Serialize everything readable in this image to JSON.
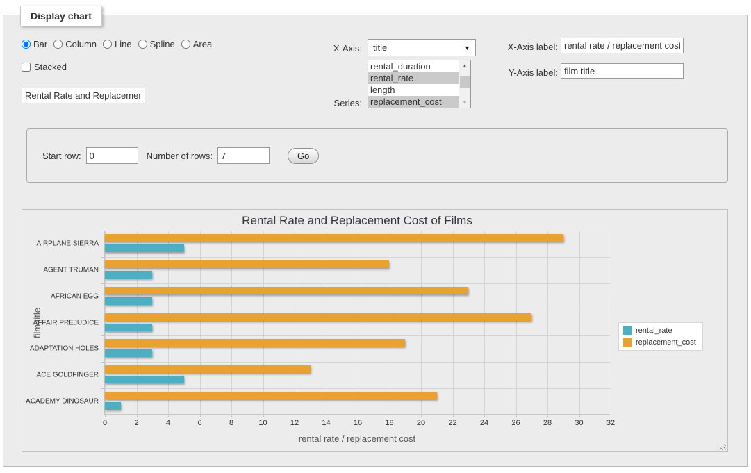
{
  "panel": {
    "legend": "Display chart"
  },
  "controls": {
    "chart_types": [
      {
        "label": "Bar",
        "checked": true
      },
      {
        "label": "Column",
        "checked": false
      },
      {
        "label": "Line",
        "checked": false
      },
      {
        "label": "Spline",
        "checked": false
      },
      {
        "label": "Area",
        "checked": false
      }
    ],
    "stacked": {
      "label": "Stacked",
      "checked": false
    },
    "chart_title_input": {
      "value": "Rental Rate and Replacemer"
    },
    "x_axis": {
      "label": "X-Axis:",
      "selected": "title"
    },
    "series": {
      "label": "Series:",
      "options": [
        {
          "label": "rental_duration",
          "selected": false
        },
        {
          "label": "rental_rate",
          "selected": true
        },
        {
          "label": "length",
          "selected": false
        },
        {
          "label": "replacement_cost",
          "selected": true
        }
      ]
    },
    "x_axis_label": {
      "label": "X-Axis label:",
      "value": "rental rate / replacement cost"
    },
    "y_axis_label": {
      "label": "Y-Axis label:",
      "value": "film title"
    }
  },
  "row_form": {
    "start_row_label": "Start row:",
    "start_row_value": "0",
    "num_rows_label": "Number of rows:",
    "num_rows_value": "7",
    "go_label": "Go"
  },
  "chart_data": {
    "type": "bar",
    "title": "Rental Rate and Replacement Cost of Films",
    "categories": [
      "AIRPLANE SIERRA",
      "AGENT TRUMAN",
      "AFRICAN EGG",
      "AFFAIR PREJUDICE",
      "ADAPTATION HOLES",
      "ACE GOLDFINGER",
      "ACADEMY DINOSAUR"
    ],
    "series": [
      {
        "name": "rental_rate",
        "color": "#4DAFC1",
        "values": [
          4.99,
          2.99,
          2.99,
          2.99,
          2.99,
          4.99,
          0.99
        ]
      },
      {
        "name": "replacement_cost",
        "color": "#E9A22F",
        "values": [
          28.99,
          17.99,
          22.99,
          26.99,
          18.99,
          12.99,
          20.99
        ]
      }
    ],
    "xlabel": "rental rate / replacement cost",
    "ylabel": "film title",
    "xlim": [
      0,
      32
    ],
    "xtick_step": 2,
    "grid": true,
    "legend_position": "right"
  }
}
